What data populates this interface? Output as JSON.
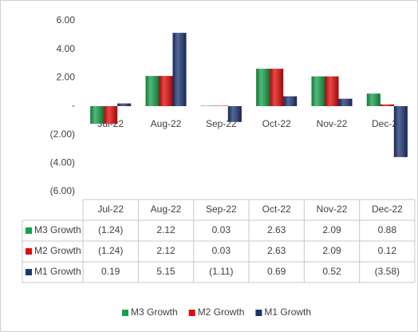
{
  "chart_data": {
    "type": "bar",
    "categories": [
      "Jul-22",
      "Aug-22",
      "Sep-22",
      "Oct-22",
      "Nov-22",
      "Dec-22"
    ],
    "series": [
      {
        "name": "M3 Growth",
        "color": "#17a04a",
        "values": [
          -1.24,
          2.12,
          0.03,
          2.63,
          2.09,
          0.88
        ],
        "value_labels": [
          "(1.24)",
          "2.12",
          "0.03",
          "2.63",
          "2.09",
          "0.88"
        ]
      },
      {
        "name": "M2 Growth",
        "color": "#e00a0a",
        "values": [
          -1.24,
          2.12,
          0.03,
          2.63,
          2.09,
          0.12
        ],
        "value_labels": [
          "(1.24)",
          "2.12",
          "0.03",
          "2.63",
          "2.09",
          "0.12"
        ]
      },
      {
        "name": "M1 Growth",
        "color": "#1c3470",
        "values": [
          0.19,
          5.15,
          -1.11,
          0.69,
          0.52,
          -3.58
        ],
        "value_labels": [
          "0.19",
          "5.15",
          "(1.11)",
          "0.69",
          "0.52",
          "(3.58)"
        ]
      }
    ],
    "ylim": [
      -6,
      6
    ],
    "yticks": [
      {
        "value": 6,
        "label": "6.00"
      },
      {
        "value": 4,
        "label": "4.00"
      },
      {
        "value": 2,
        "label": "2.00"
      },
      {
        "value": 0,
        "label": "-"
      },
      {
        "value": -2,
        "label": "(2.00)"
      },
      {
        "value": -4,
        "label": "(4.00)"
      },
      {
        "value": -6,
        "label": "(6.00)"
      }
    ],
    "grid": false,
    "data_table": true,
    "legend": "bottom"
  }
}
